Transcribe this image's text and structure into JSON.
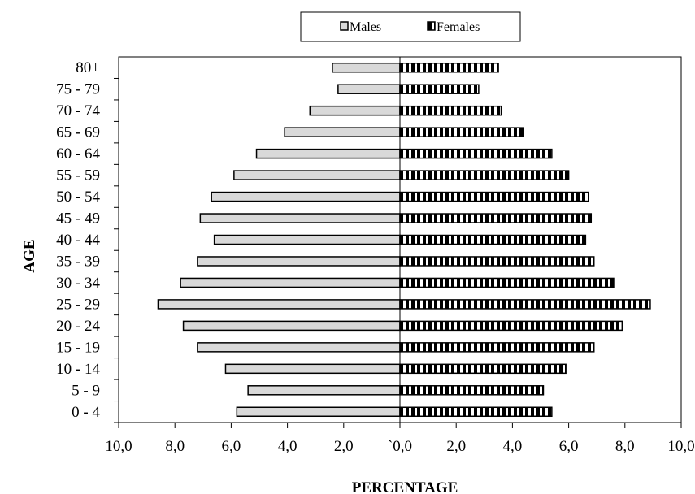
{
  "chart_data": {
    "type": "bar",
    "orientation": "horizontal",
    "subtype": "population-pyramid",
    "title": "",
    "xlabel": "PERCENTAGE",
    "ylabel": "AGE",
    "categories": [
      "0 - 4",
      "5 - 9",
      "10 - 14",
      "15 - 19",
      "20 - 24",
      "25 - 29",
      "30 - 34",
      "35 - 39",
      "40 - 44",
      "45 - 49",
      "50 - 54",
      "55 - 59",
      "60 - 64",
      "65 - 69",
      "70 - 74",
      "75 - 79",
      "80+"
    ],
    "series": [
      {
        "name": "Males",
        "side": "left",
        "color": "#d9d9d9",
        "pattern": "solid",
        "values": [
          5.8,
          5.4,
          6.2,
          7.2,
          7.7,
          8.6,
          7.8,
          7.2,
          6.6,
          7.1,
          6.7,
          5.9,
          5.1,
          4.1,
          3.2,
          2.2,
          2.4
        ]
      },
      {
        "name": "Females",
        "side": "right",
        "color": "#000000",
        "pattern": "checkered",
        "values": [
          5.4,
          5.1,
          5.9,
          6.9,
          7.9,
          8.9,
          7.6,
          6.9,
          6.6,
          6.8,
          6.7,
          6.0,
          5.4,
          4.4,
          3.6,
          2.8,
          3.5
        ]
      }
    ],
    "xlim": [
      -10,
      10
    ],
    "x_ticks": [
      -10,
      -8,
      -6,
      -4,
      -2,
      0,
      2,
      4,
      6,
      8,
      10
    ],
    "x_tick_labels": [
      "10,0",
      "8,0",
      "6,0",
      "4,0",
      "2,0",
      "`0,0",
      "2,0",
      "4,0",
      "6,0",
      "8,0",
      "10,0"
    ],
    "grid": false,
    "legend_position": "top-center"
  }
}
